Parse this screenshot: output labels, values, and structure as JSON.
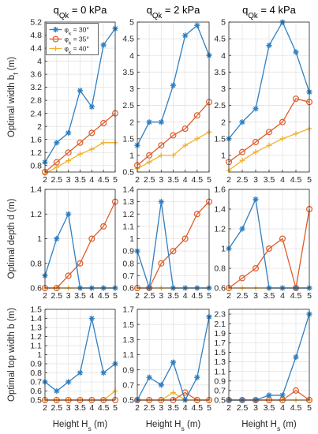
{
  "figure": {
    "col_titles": [
      {
        "base": "q",
        "sub": "Qk",
        "rest": " = 0 kPa"
      },
      {
        "base": "q",
        "sub": "Qk",
        "rest": " = 2 kPa"
      },
      {
        "base": "q",
        "sub": "Qk",
        "rest": " = 4 kPa"
      }
    ],
    "row_ylabels": [
      {
        "base": "Optimal width b",
        "sub": "f",
        "rest": " (m)"
      },
      {
        "base": "Optimal depth d",
        "sub": "",
        "rest": " (m)"
      },
      {
        "base": "Optimal top width b",
        "sub": "",
        "rest": " (m)"
      }
    ],
    "xlabel": {
      "base": "Height H",
      "sub": "s",
      "rest": " (m)"
    },
    "legend": [
      {
        "base": "φ",
        "sub": "k",
        "rest": " = 30°",
        "color": "#2f7fc1",
        "marker": "star"
      },
      {
        "base": "φ",
        "sub": "k",
        "rest": " = 35°",
        "color": "#e05c2b",
        "marker": "circle"
      },
      {
        "base": "φ",
        "sub": "k",
        "rest": " = 40°",
        "color": "#f2b12a",
        "marker": "plus"
      }
    ]
  },
  "chart_data": [
    {
      "type": "line",
      "row": 0,
      "col": 0,
      "x": [
        2,
        2.5,
        3,
        3.5,
        4,
        4.5,
        5
      ],
      "xticks": [
        "2",
        "2.5",
        "3",
        "3.5",
        "4",
        "4.5",
        "5"
      ],
      "ylim": [
        0.6,
        5.2
      ],
      "yticks": [
        "0.8",
        "1.2",
        "1.6",
        "2",
        "2.4",
        "2.8",
        "3.2",
        "3.6",
        "4",
        "4.4",
        "4.8",
        "5.2"
      ],
      "series": [
        {
          "name": "φk = 30°",
          "values": [
            0.9,
            1.5,
            1.8,
            3.1,
            2.6,
            4.5,
            5.0
          ]
        },
        {
          "name": "φk = 35°",
          "values": [
            0.6,
            0.9,
            1.2,
            1.5,
            1.8,
            2.1,
            2.4
          ]
        },
        {
          "name": "φk = 40°",
          "values": [
            0.55,
            0.75,
            0.95,
            1.15,
            1.3,
            1.5,
            1.5
          ]
        }
      ]
    },
    {
      "type": "line",
      "row": 0,
      "col": 1,
      "x": [
        2,
        2.5,
        3,
        3.5,
        4,
        4.5,
        5
      ],
      "xticks": [
        "2",
        "2.5",
        "3",
        "3.5",
        "4",
        "4.5",
        "5"
      ],
      "ylim": [
        0.5,
        5.0
      ],
      "yticks": [
        "0.5",
        "1",
        "1.5",
        "2",
        "2.5",
        "3",
        "3.5",
        "4",
        "4.5",
        "5"
      ],
      "series": [
        {
          "name": "φk = 30°",
          "values": [
            1.3,
            2.0,
            2.0,
            3.1,
            4.6,
            4.9,
            4.0
          ]
        },
        {
          "name": "φk = 35°",
          "values": [
            0.7,
            1.0,
            1.3,
            1.6,
            1.8,
            2.2,
            2.6
          ]
        },
        {
          "name": "φk = 40°",
          "values": [
            0.6,
            0.8,
            1.0,
            1.0,
            1.3,
            1.5,
            1.7
          ]
        }
      ]
    },
    {
      "type": "line",
      "row": 0,
      "col": 2,
      "x": [
        2,
        2.5,
        3,
        3.5,
        4,
        4.5,
        5
      ],
      "xticks": [
        "2",
        "2.5",
        "3",
        "3.5",
        "4",
        "4.5",
        "5"
      ],
      "ylim": [
        0.5,
        5.0
      ],
      "yticks": [
        "1",
        "1.5",
        "2",
        "2.5",
        "3",
        "3.5",
        "4",
        "4.5",
        "5"
      ],
      "series": [
        {
          "name": "φk = 30°",
          "values": [
            1.5,
            2.0,
            2.4,
            4.3,
            5.0,
            4.1,
            2.9
          ]
        },
        {
          "name": "φk = 35°",
          "values": [
            0.8,
            1.1,
            1.4,
            1.7,
            2.0,
            2.7,
            2.6
          ]
        },
        {
          "name": "φk = 40°",
          "values": [
            0.55,
            0.85,
            1.1,
            1.3,
            1.5,
            1.65,
            1.8
          ]
        }
      ]
    },
    {
      "type": "line",
      "row": 1,
      "col": 0,
      "x": [
        2,
        2.5,
        3,
        3.5,
        4,
        4.5,
        5
      ],
      "xticks": [
        "2",
        "2.5",
        "3",
        "3.5",
        "4",
        "4.5",
        "5"
      ],
      "ylim": [
        0.6,
        1.4
      ],
      "yticks": [
        "0.6",
        "0.8",
        "1",
        "1.2",
        "1.4"
      ],
      "series": [
        {
          "name": "φk = 30°",
          "values": [
            0.7,
            1.0,
            1.2,
            0.6,
            0.6,
            0.6,
            0.6
          ]
        },
        {
          "name": "φk = 35°",
          "values": [
            0.6,
            0.6,
            0.7,
            0.8,
            1.0,
            1.1,
            1.3
          ]
        },
        {
          "name": "φk = 40°",
          "values": [
            0.6,
            0.6,
            0.6,
            0.6,
            0.6,
            0.6,
            0.6
          ]
        }
      ]
    },
    {
      "type": "line",
      "row": 1,
      "col": 1,
      "x": [
        2,
        2.5,
        3,
        3.5,
        4,
        4.5,
        5
      ],
      "xticks": [
        "2",
        "2.5",
        "3",
        "3.5",
        "4",
        "4.5",
        "5"
      ],
      "ylim": [
        0.6,
        1.4
      ],
      "yticks": [
        "0.6",
        "0.7",
        "0.8",
        "0.9",
        "1",
        "1.1",
        "1.2",
        "1.3",
        "1.4"
      ],
      "series": [
        {
          "name": "φk = 30°",
          "values": [
            0.9,
            0.6,
            1.3,
            0.6,
            0.6,
            0.6,
            0.6
          ]
        },
        {
          "name": "φk = 35°",
          "values": [
            0.6,
            0.6,
            0.8,
            0.9,
            1.0,
            1.2,
            1.3
          ]
        },
        {
          "name": "φk = 40°",
          "values": [
            0.6,
            0.6,
            0.6,
            0.6,
            0.6,
            0.6,
            0.6
          ]
        }
      ]
    },
    {
      "type": "line",
      "row": 1,
      "col": 2,
      "x": [
        2,
        2.5,
        3,
        3.5,
        4,
        4.5,
        5
      ],
      "xticks": [
        "2",
        "2.5",
        "3",
        "3.5",
        "4",
        "4.5",
        "5"
      ],
      "ylim": [
        0.6,
        1.6
      ],
      "yticks": [
        "0.6",
        "0.8",
        "1",
        "1.2",
        "1.4",
        "1.6"
      ],
      "series": [
        {
          "name": "φk = 30°",
          "values": [
            1.0,
            1.2,
            1.5,
            0.6,
            0.6,
            0.6,
            0.6
          ]
        },
        {
          "name": "φk = 35°",
          "values": [
            0.6,
            0.7,
            0.8,
            1.0,
            1.1,
            0.6,
            1.4
          ]
        },
        {
          "name": "φk = 40°",
          "values": [
            0.6,
            0.6,
            0.6,
            0.6,
            0.6,
            0.6,
            0.6
          ]
        }
      ]
    },
    {
      "type": "line",
      "row": 2,
      "col": 0,
      "x": [
        2,
        2.5,
        3,
        3.5,
        4,
        4.5,
        5
      ],
      "xticks": [
        "2",
        "2.5",
        "3",
        "3.5",
        "4",
        "4.5",
        "5"
      ],
      "ylim": [
        0.5,
        1.5
      ],
      "yticks": [
        "0.5",
        "0.6",
        "0.7",
        "0.8",
        "0.9",
        "1",
        "1.1",
        "1.2",
        "1.3",
        "1.4",
        "1.5"
      ],
      "series": [
        {
          "name": "φk = 30°",
          "values": [
            0.7,
            0.6,
            0.7,
            0.8,
            1.4,
            0.8,
            0.9
          ]
        },
        {
          "name": "φk = 35°",
          "values": [
            0.5,
            0.5,
            0.5,
            0.5,
            0.5,
            0.5,
            0.5
          ]
        },
        {
          "name": "φk = 40°",
          "values": [
            0.5,
            0.5,
            0.5,
            0.5,
            0.5,
            0.5,
            0.6
          ]
        }
      ]
    },
    {
      "type": "line",
      "row": 2,
      "col": 1,
      "x": [
        2,
        2.5,
        3,
        3.5,
        4,
        4.5,
        5
      ],
      "xticks": [
        "2",
        "2.5",
        "3",
        "3.5",
        "4",
        "4.5",
        "5"
      ],
      "ylim": [
        0.5,
        1.7
      ],
      "yticks": [
        "0.5",
        "0.7",
        "0.9",
        "1.1",
        "1.3",
        "1.5",
        "1.7"
      ],
      "series": [
        {
          "name": "φk = 30°",
          "values": [
            0.5,
            0.8,
            0.7,
            1.0,
            0.5,
            0.8,
            1.6
          ]
        },
        {
          "name": "φk = 35°",
          "values": [
            0.5,
            0.5,
            0.5,
            0.5,
            0.6,
            0.5,
            0.5
          ]
        },
        {
          "name": "φk = 40°",
          "values": [
            0.5,
            0.5,
            0.5,
            0.6,
            0.5,
            0.5,
            0.5
          ]
        }
      ]
    },
    {
      "type": "line",
      "row": 2,
      "col": 2,
      "x": [
        2,
        2.5,
        3,
        3.5,
        4,
        4.5,
        5
      ],
      "xticks": [
        "2",
        "2.5",
        "3",
        "3.5",
        "4",
        "4.5",
        "5"
      ],
      "ylim": [
        0.5,
        2.4
      ],
      "yticks": [
        "0.5",
        "0.7",
        "0.9",
        "1.1",
        "1.3",
        "1.5",
        "1.7",
        "1.9",
        "2.1",
        "2.3"
      ],
      "series": [
        {
          "name": "φk = 30°",
          "values": [
            0.5,
            0.5,
            0.5,
            0.6,
            0.6,
            1.4,
            2.3
          ]
        },
        {
          "name": "φk = 35°",
          "values": [
            0.5,
            0.5,
            0.5,
            0.5,
            0.5,
            0.7,
            0.5
          ]
        },
        {
          "name": "φk = 40°",
          "values": [
            0.5,
            0.5,
            0.5,
            0.5,
            0.5,
            0.5,
            0.5
          ]
        }
      ]
    }
  ]
}
